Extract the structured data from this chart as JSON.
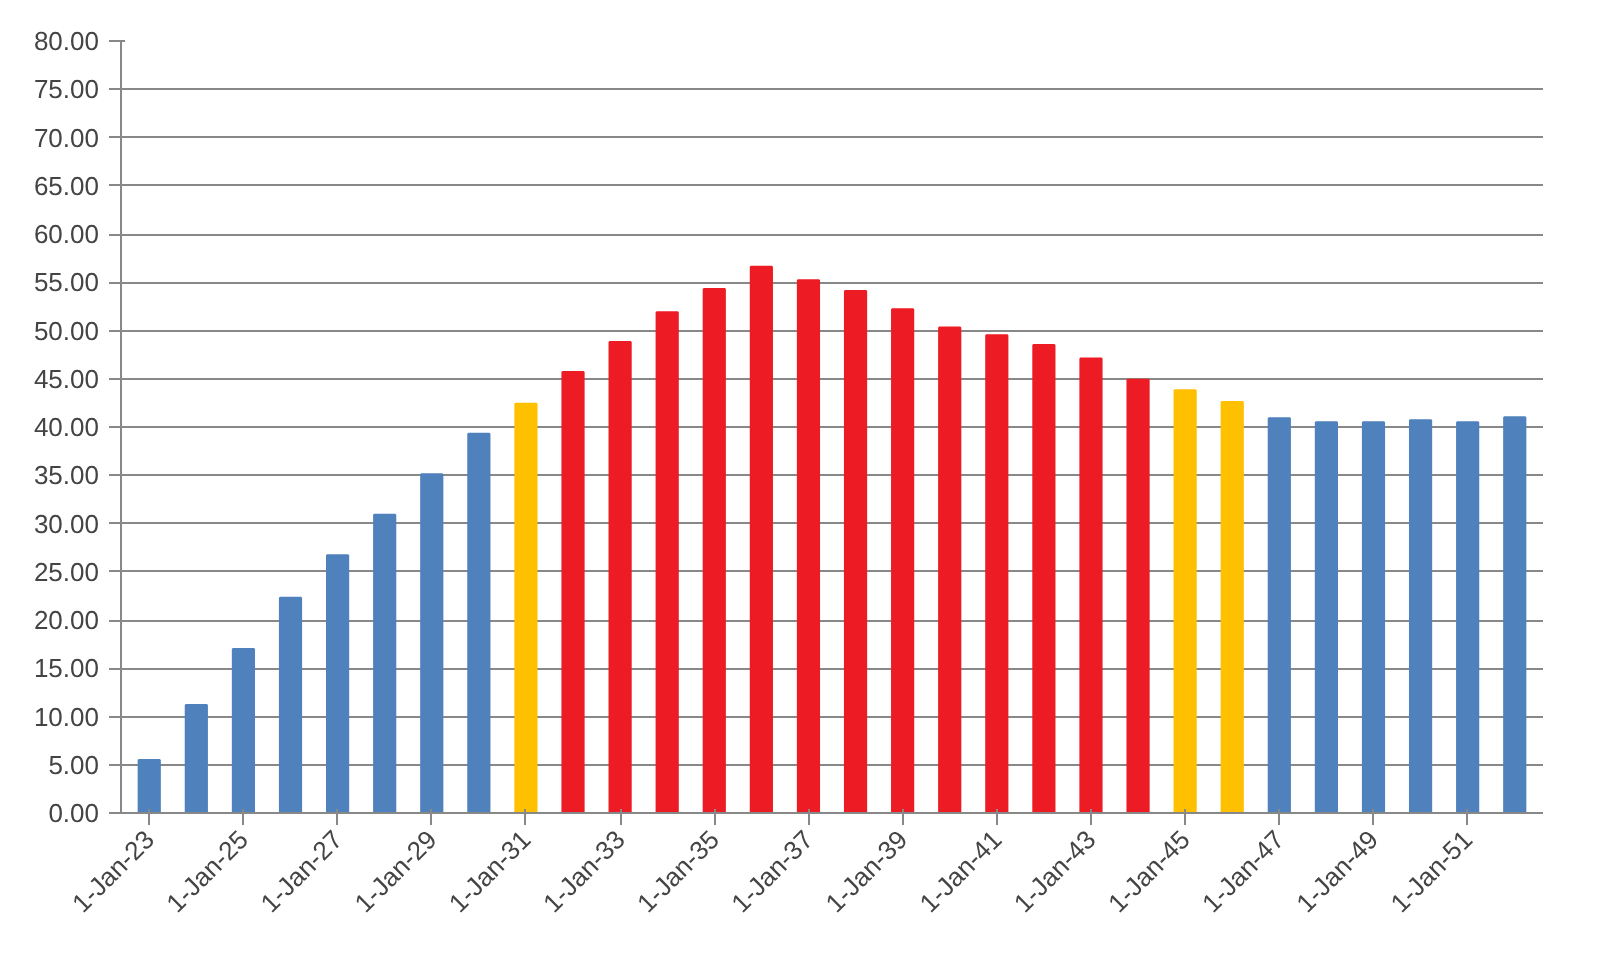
{
  "chart_data": {
    "type": "bar",
    "categories": [
      "1-Jan-23",
      null,
      "1-Jan-25",
      null,
      "1-Jan-27",
      null,
      "1-Jan-29",
      null,
      "1-Jan-31",
      null,
      "1-Jan-33",
      null,
      "1-Jan-35",
      null,
      "1-Jan-37",
      null,
      "1-Jan-39",
      null,
      "1-Jan-41",
      null,
      "1-Jan-43",
      null,
      "1-Jan-45",
      null,
      "1-Jan-47",
      null,
      "1-Jan-49",
      null,
      "1-Jan-51",
      null
    ],
    "values": [
      5.5,
      11.2,
      17.0,
      22.3,
      26.7,
      30.9,
      35.1,
      39.3,
      42.4,
      45.7,
      48.8,
      51.9,
      54.3,
      56.6,
      55.2,
      54.1,
      52.2,
      50.3,
      49.5,
      48.5,
      47.1,
      44.9,
      43.8,
      42.6,
      40.9,
      40.5,
      40.5,
      40.7,
      40.5,
      41.0
    ],
    "colors": [
      "#4f81bd",
      "#4f81bd",
      "#4f81bd",
      "#4f81bd",
      "#4f81bd",
      "#4f81bd",
      "#4f81bd",
      "#4f81bd",
      "#ffc000",
      "#ed1c24",
      "#ed1c24",
      "#ed1c24",
      "#ed1c24",
      "#ed1c24",
      "#ed1c24",
      "#ed1c24",
      "#ed1c24",
      "#ed1c24",
      "#ed1c24",
      "#ed1c24",
      "#ed1c24",
      "#ed1c24",
      "#ffc000",
      "#ffc000",
      "#4f81bd",
      "#4f81bd",
      "#4f81bd",
      "#4f81bd",
      "#4f81bd",
      "#4f81bd"
    ],
    "ylim": [
      0,
      80
    ],
    "yticks": [
      {
        "value": 0,
        "label": "0.00"
      },
      {
        "value": 5,
        "label": "5.00"
      },
      {
        "value": 10,
        "label": "10.00"
      },
      {
        "value": 15,
        "label": "15.00"
      },
      {
        "value": 20,
        "label": "20.00"
      },
      {
        "value": 25,
        "label": "25.00"
      },
      {
        "value": 30,
        "label": "30.00"
      },
      {
        "value": 35,
        "label": "35.00"
      },
      {
        "value": 40,
        "label": "40.00"
      },
      {
        "value": 45,
        "label": "45.00"
      },
      {
        "value": 50,
        "label": "50.00"
      },
      {
        "value": 55,
        "label": "55.00"
      },
      {
        "value": 60,
        "label": "60.00"
      },
      {
        "value": 65,
        "label": "65.00"
      },
      {
        "value": 70,
        "label": "70.00"
      },
      {
        "value": 75,
        "label": "75.00"
      },
      {
        "value": 80,
        "label": "80.00"
      }
    ],
    "grid": "y"
  }
}
